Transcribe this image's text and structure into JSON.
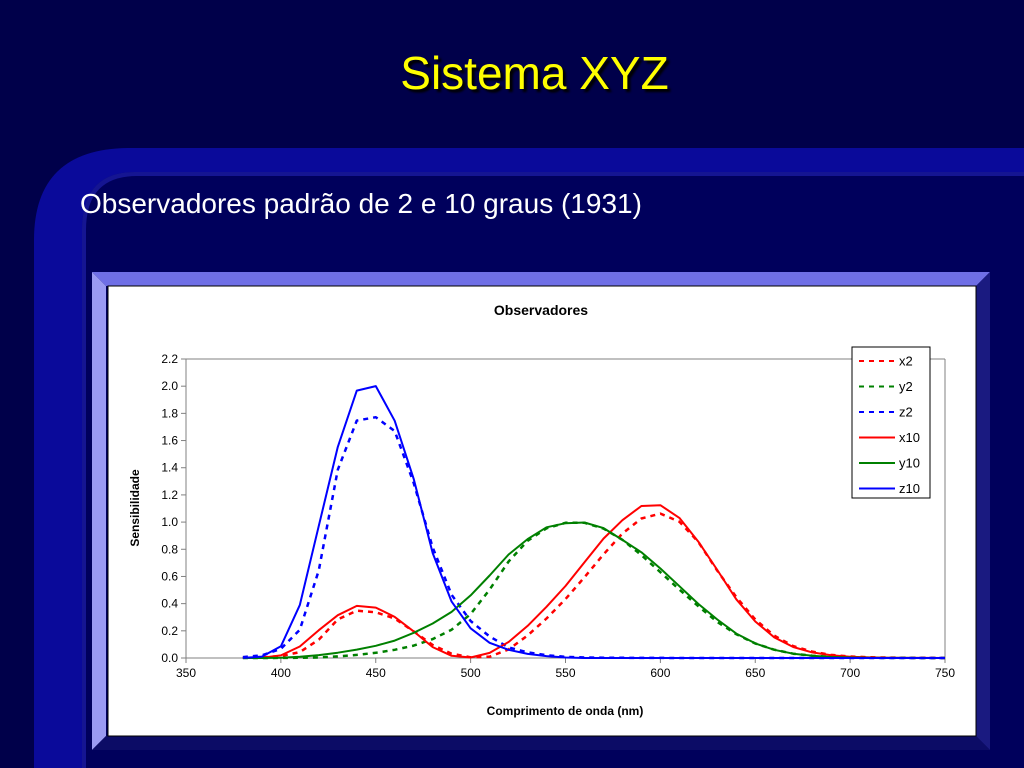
{
  "slide": {
    "title": "Sistema XYZ",
    "subtitle": "Observadores padrão de 2 e 10 graus (1931)"
  },
  "colors": {
    "background": "#00005c",
    "accent_band": "#0a0a9a",
    "title": "#ffff00",
    "x_series": "#ff0000",
    "y_series": "#008000",
    "z_series": "#0000ff"
  },
  "chart_data": {
    "type": "line",
    "title": "Observadores",
    "xlabel": "Comprimento de onda (nm)",
    "ylabel": "Sensibilidade",
    "xlim": [
      350,
      750
    ],
    "ylim": [
      0,
      2.2
    ],
    "xticks": [
      350,
      400,
      450,
      500,
      550,
      600,
      650,
      700,
      750
    ],
    "yticks": [
      0,
      0.2,
      0.4,
      0.6,
      0.8,
      1.0,
      1.2,
      1.4,
      1.6,
      1.8,
      2.0,
      2.2
    ],
    "grid": false,
    "legend_position": "top-right",
    "x": [
      380,
      390,
      400,
      410,
      420,
      430,
      440,
      450,
      460,
      470,
      480,
      490,
      500,
      510,
      520,
      530,
      540,
      550,
      560,
      570,
      580,
      590,
      600,
      610,
      620,
      630,
      640,
      650,
      660,
      670,
      680,
      690,
      700,
      710,
      720,
      730,
      740,
      750
    ],
    "series": [
      {
        "name": "x2",
        "color": "#ff0000",
        "dash": true,
        "values": [
          0.0014,
          0.0042,
          0.0143,
          0.0435,
          0.1344,
          0.2839,
          0.3483,
          0.3362,
          0.2908,
          0.1954,
          0.0956,
          0.032,
          0.0049,
          0.0093,
          0.0633,
          0.1655,
          0.2904,
          0.4334,
          0.5945,
          0.7621,
          0.9163,
          1.0263,
          1.0622,
          1.0026,
          0.8544,
          0.6424,
          0.4479,
          0.2835,
          0.1649,
          0.0874,
          0.0468,
          0.0227,
          0.0114,
          0.0058,
          0.0029,
          0.0014,
          0.0007,
          0.0003
        ]
      },
      {
        "name": "y2",
        "color": "#008000",
        "dash": true,
        "values": [
          0.0,
          0.0001,
          0.0004,
          0.0012,
          0.004,
          0.0116,
          0.023,
          0.038,
          0.06,
          0.091,
          0.139,
          0.208,
          0.323,
          0.503,
          0.71,
          0.862,
          0.954,
          0.995,
          0.995,
          0.952,
          0.87,
          0.757,
          0.631,
          0.503,
          0.381,
          0.265,
          0.175,
          0.107,
          0.061,
          0.032,
          0.017,
          0.0082,
          0.0041,
          0.0021,
          0.001,
          0.0005,
          0.0002,
          0.0001
        ]
      },
      {
        "name": "z2",
        "color": "#0000ff",
        "dash": true,
        "values": [
          0.0065,
          0.0201,
          0.0679,
          0.2074,
          0.6456,
          1.3856,
          1.7471,
          1.7721,
          1.6692,
          1.2876,
          0.813,
          0.4652,
          0.272,
          0.1582,
          0.0782,
          0.0422,
          0.0203,
          0.0087,
          0.0039,
          0.0021,
          0.0017,
          0.0011,
          0.0008,
          0.0003,
          0.0002,
          0.0,
          0.0,
          0.0,
          0.0,
          0.0,
          0.0,
          0.0,
          0.0,
          0.0,
          0.0,
          0.0,
          0.0,
          0.0
        ]
      },
      {
        "name": "x10",
        "color": "#ff0000",
        "dash": false,
        "values": [
          0.0002,
          0.0024,
          0.0191,
          0.0847,
          0.2045,
          0.3147,
          0.3837,
          0.3707,
          0.3023,
          0.1956,
          0.0805,
          0.0162,
          0.0038,
          0.0375,
          0.1177,
          0.2365,
          0.3768,
          0.5298,
          0.7052,
          0.8787,
          1.0142,
          1.1185,
          1.124,
          1.0305,
          0.8563,
          0.6475,
          0.4316,
          0.2683,
          0.1526,
          0.0813,
          0.0409,
          0.0199,
          0.0096,
          0.0046,
          0.0022,
          0.001,
          0.0005,
          0.0002
        ]
      },
      {
        "name": "y10",
        "color": "#008000",
        "dash": false,
        "values": [
          0.0,
          0.0003,
          0.002,
          0.0088,
          0.0214,
          0.0387,
          0.0621,
          0.0895,
          0.1282,
          0.1852,
          0.2536,
          0.3391,
          0.4608,
          0.6067,
          0.7618,
          0.8752,
          0.962,
          0.9918,
          0.9973,
          0.9556,
          0.8689,
          0.7774,
          0.6583,
          0.528,
          0.3981,
          0.2835,
          0.1798,
          0.1076,
          0.0603,
          0.032,
          0.0159,
          0.0077,
          0.0037,
          0.0018,
          0.0008,
          0.0004,
          0.0002,
          0.0001
        ]
      },
      {
        "name": "z10",
        "color": "#0000ff",
        "dash": false,
        "values": [
          0.0007,
          0.0105,
          0.086,
          0.3894,
          0.9725,
          1.5535,
          1.9673,
          2.0006,
          1.7454,
          1.3176,
          0.7721,
          0.4153,
          0.2185,
          0.112,
          0.0607,
          0.0305,
          0.0137,
          0.004,
          0.0,
          0.0,
          0.0,
          0.0,
          0.0,
          0.0,
          0.0,
          0.0,
          0.0,
          0.0,
          0.0,
          0.0,
          0.0,
          0.0,
          0.0,
          0.0,
          0.0,
          0.0,
          0.0,
          0.0
        ]
      }
    ]
  }
}
